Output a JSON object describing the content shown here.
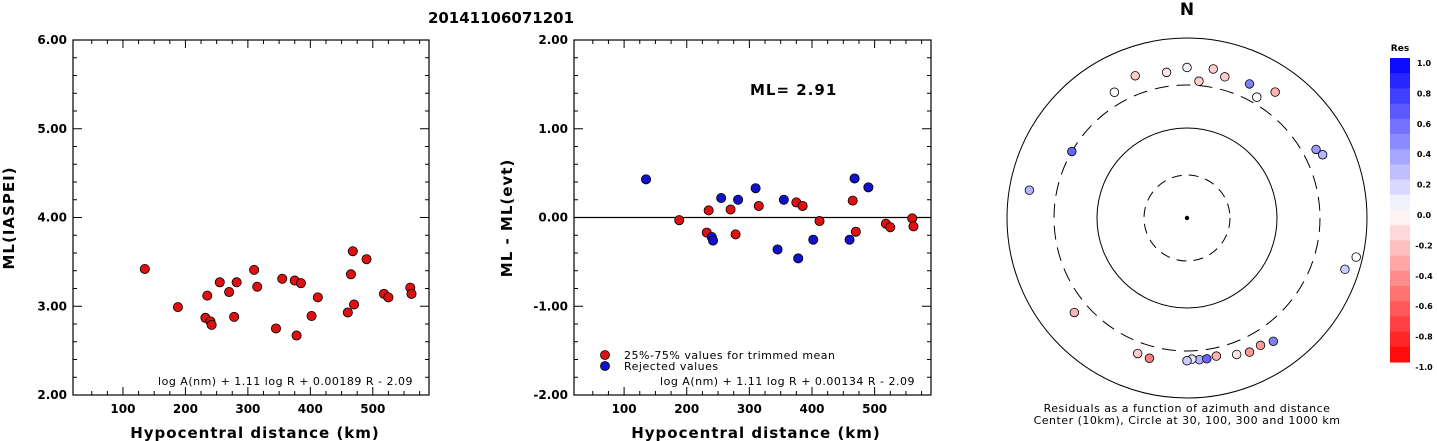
{
  "figure_title": "20141106071201",
  "colors": {
    "trimmed": "#dd1111",
    "rejected": "#1111cc",
    "line": "#000000"
  },
  "chart_data": [
    {
      "type": "scatter",
      "panel": "left",
      "xlabel": "Hypocentral distance (km)",
      "ylabel": "ML(IASPEI)",
      "xlim": [
        20,
        590
      ],
      "ylim": [
        2.0,
        6.0
      ],
      "xticks": [
        "100",
        "200",
        "300",
        "400",
        "500"
      ],
      "yticks": [
        "2.00",
        "3.00",
        "4.00",
        "5.00",
        "6.00"
      ],
      "formula": "log A(nm) + 1.11 log R + 0.00189 R - 2.09",
      "points": [
        {
          "x": 135,
          "y": 3.42
        },
        {
          "x": 188,
          "y": 2.99
        },
        {
          "x": 232,
          "y": 2.87
        },
        {
          "x": 235,
          "y": 3.12
        },
        {
          "x": 240,
          "y": 2.83
        },
        {
          "x": 242,
          "y": 2.79
        },
        {
          "x": 255,
          "y": 3.27
        },
        {
          "x": 270,
          "y": 3.16
        },
        {
          "x": 278,
          "y": 2.88
        },
        {
          "x": 282,
          "y": 3.27
        },
        {
          "x": 310,
          "y": 3.41
        },
        {
          "x": 315,
          "y": 3.22
        },
        {
          "x": 345,
          "y": 2.75
        },
        {
          "x": 355,
          "y": 3.31
        },
        {
          "x": 375,
          "y": 3.29
        },
        {
          "x": 378,
          "y": 2.67
        },
        {
          "x": 385,
          "y": 3.26
        },
        {
          "x": 402,
          "y": 2.89
        },
        {
          "x": 412,
          "y": 3.1
        },
        {
          "x": 460,
          "y": 2.93
        },
        {
          "x": 465,
          "y": 3.36
        },
        {
          "x": 468,
          "y": 3.62
        },
        {
          "x": 470,
          "y": 3.02
        },
        {
          "x": 490,
          "y": 3.53
        },
        {
          "x": 518,
          "y": 3.14
        },
        {
          "x": 525,
          "y": 3.1
        },
        {
          "x": 560,
          "y": 3.21
        },
        {
          "x": 562,
          "y": 3.14
        }
      ]
    },
    {
      "type": "scatter",
      "panel": "middle",
      "xlabel": "Hypocentral distance (km)",
      "ylabel": "ML - ML(evt)",
      "xlim": [
        20,
        590
      ],
      "ylim": [
        -2.0,
        2.0
      ],
      "xticks": [
        "100",
        "200",
        "300",
        "400",
        "500"
      ],
      "yticks": [
        "-2.00",
        "-1.00",
        "0.00",
        "1.00",
        "2.00"
      ],
      "ml_label": "ML= 2.91",
      "formula": "log A(nm) + 1.11 log R + 0.00134 R - 2.09",
      "legend": [
        "25%-75% values for trimmed mean",
        "Rejected values"
      ],
      "legend_position": "bottom-left",
      "trimmed_points": [
        {
          "x": 188,
          "y": -0.03
        },
        {
          "x": 232,
          "y": -0.17
        },
        {
          "x": 235,
          "y": 0.08
        },
        {
          "x": 270,
          "y": 0.09
        },
        {
          "x": 278,
          "y": -0.19
        },
        {
          "x": 315,
          "y": 0.13
        },
        {
          "x": 375,
          "y": 0.17
        },
        {
          "x": 385,
          "y": 0.13
        },
        {
          "x": 412,
          "y": -0.04
        },
        {
          "x": 465,
          "y": 0.19
        },
        {
          "x": 470,
          "y": -0.16
        },
        {
          "x": 518,
          "y": -0.07
        },
        {
          "x": 525,
          "y": -0.11
        },
        {
          "x": 560,
          "y": -0.01
        },
        {
          "x": 562,
          "y": -0.1
        }
      ],
      "rejected_points": [
        {
          "x": 135,
          "y": 0.43
        },
        {
          "x": 240,
          "y": -0.22
        },
        {
          "x": 242,
          "y": -0.26
        },
        {
          "x": 255,
          "y": 0.22
        },
        {
          "x": 282,
          "y": 0.2
        },
        {
          "x": 310,
          "y": 0.33
        },
        {
          "x": 345,
          "y": -0.36
        },
        {
          "x": 355,
          "y": 0.2
        },
        {
          "x": 378,
          "y": -0.46
        },
        {
          "x": 402,
          "y": -0.25
        },
        {
          "x": 460,
          "y": -0.25
        },
        {
          "x": 468,
          "y": 0.44
        },
        {
          "x": 490,
          "y": 0.34
        }
      ]
    },
    {
      "type": "scatter",
      "panel": "polar",
      "north_label": "N",
      "caption_line1": "Residuals as a function of azimuth and distance",
      "caption_line2": "Center (10km), Circle at 30, 100, 300 and 1000 km",
      "colorbar_title": "Res",
      "colorbar_ticks": [
        "1.0",
        "0.8",
        "0.6",
        "0.4",
        "0.2",
        "0.0",
        "-0.2",
        "-0.4",
        "-0.6",
        "-0.8",
        "-1.0"
      ],
      "points": [
        {
          "az": 0,
          "dist": 470,
          "res": 0.05
        },
        {
          "az": 15,
          "dist": 420,
          "res": -0.2
        },
        {
          "az": 25,
          "dist": 440,
          "res": 0.5
        },
        {
          "az": 5,
          "dist": 335,
          "res": -0.2
        },
        {
          "az": -8,
          "dist": 430,
          "res": -0.1
        },
        {
          "az": 10,
          "dist": 480,
          "res": -0.2
        },
        {
          "az": -20,
          "dist": 480,
          "res": -0.2
        },
        {
          "az": 35,
          "dist": 510,
          "res": -0.3
        },
        {
          "az": -30,
          "dist": 410,
          "res": 0.0
        },
        {
          "az": 30,
          "dist": 355,
          "res": 0.0
        },
        {
          "az": 62,
          "dist": 420,
          "res": 0.4
        },
        {
          "az": 65,
          "dist": 460,
          "res": 0.3
        },
        {
          "az": -60,
          "dist": 300,
          "res": 0.6
        },
        {
          "az": -80,
          "dist": 600,
          "res": 0.3
        },
        {
          "az": 103,
          "dist": 850,
          "res": 0.0
        },
        {
          "az": 108,
          "dist": 700,
          "res": 0.2
        },
        {
          "az": -130,
          "dist": 430,
          "res": -0.3
        },
        {
          "az": -160,
          "dist": 400,
          "res": -0.2
        },
        {
          "az": -165,
          "dist": 410,
          "res": -0.5
        },
        {
          "az": 175,
          "dist": 380,
          "res": 0.3
        },
        {
          "az": 178,
          "dist": 370,
          "res": 0.1
        },
        {
          "az": 172,
          "dist": 380,
          "res": 0.6
        },
        {
          "az": 180,
          "dist": 385,
          "res": 0.2
        },
        {
          "az": 168,
          "dist": 370,
          "res": -0.3
        },
        {
          "az": 160,
          "dist": 410,
          "res": -0.1
        },
        {
          "az": 150,
          "dist": 430,
          "res": -0.4
        },
        {
          "az": 145,
          "dist": 470,
          "res": 0.5
        },
        {
          "az": 155,
          "dist": 440,
          "res": -0.4
        }
      ]
    }
  ]
}
